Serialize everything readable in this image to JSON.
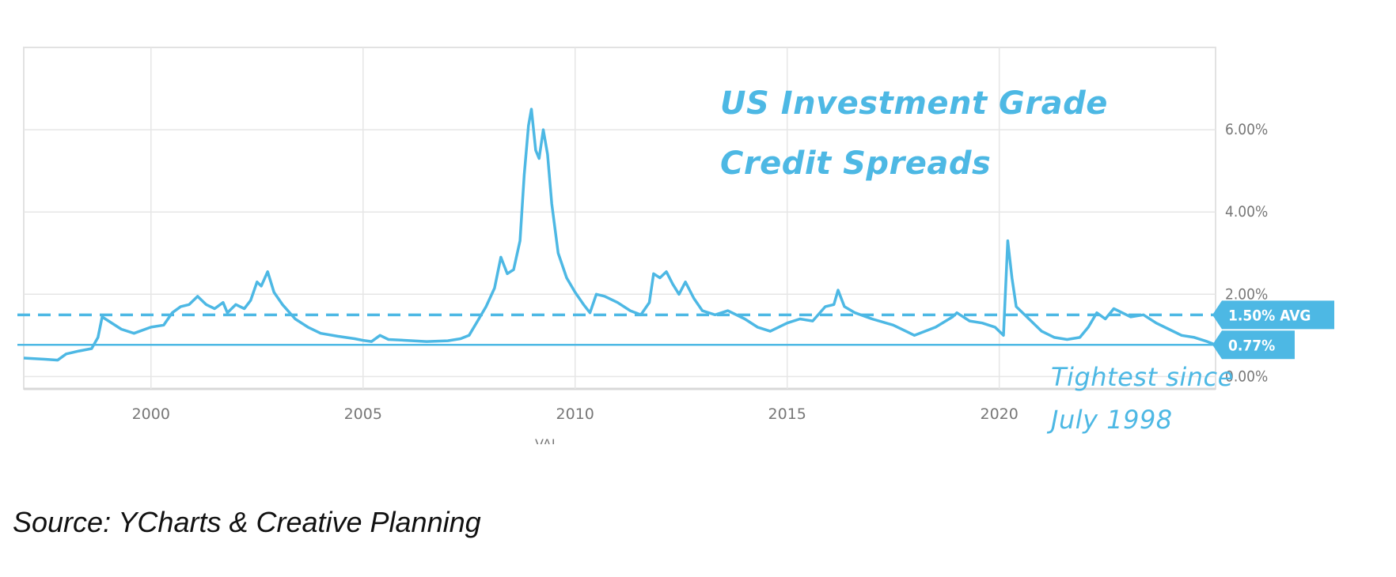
{
  "annotations": {
    "title_line1": "US Investment Grade",
    "title_line2": "Credit Spreads",
    "tightest_line1": "Tightest since",
    "tightest_line2": "July 1998",
    "xaxis_stub": "VAL"
  },
  "source": "Source:  YCharts & Creative Planning",
  "colors": {
    "line": "#4db8e4",
    "grid": "#e6e6e6",
    "badge": "#4db8e4",
    "axis_text": "#777777"
  },
  "chart_data": {
    "type": "line",
    "xlim": [
      1997.0,
      2025.1
    ],
    "ylim": [
      -0.3,
      8.0
    ],
    "x_ticks": [
      2000,
      2005,
      2010,
      2015,
      2020
    ],
    "x_tick_labels": [
      "2000",
      "2005",
      "2010",
      "2015",
      "2020"
    ],
    "y_ticks": [
      0,
      2,
      4,
      6
    ],
    "y_tick_labels": [
      "0.00%",
      "2.00%",
      "4.00%",
      "6.00%"
    ],
    "grid": true,
    "reference_lines": [
      {
        "value": 1.5,
        "style": "dashed",
        "label": "1.50% AVG"
      },
      {
        "value": 0.77,
        "style": "solid",
        "label": "0.77%"
      }
    ],
    "series": [
      {
        "points": [
          [
            1997.0,
            0.45
          ],
          [
            1997.5,
            0.42
          ],
          [
            1997.8,
            0.4
          ],
          [
            1998.0,
            0.55
          ],
          [
            1998.3,
            0.62
          ],
          [
            1998.6,
            0.68
          ],
          [
            1998.75,
            0.95
          ],
          [
            1998.85,
            1.45
          ],
          [
            1999.0,
            1.35
          ],
          [
            1999.3,
            1.15
          ],
          [
            1999.6,
            1.05
          ],
          [
            2000.0,
            1.2
          ],
          [
            2000.3,
            1.25
          ],
          [
            2000.5,
            1.55
          ],
          [
            2000.7,
            1.7
          ],
          [
            2000.9,
            1.75
          ],
          [
            2001.1,
            1.95
          ],
          [
            2001.3,
            1.75
          ],
          [
            2001.5,
            1.65
          ],
          [
            2001.7,
            1.8
          ],
          [
            2001.8,
            1.55
          ],
          [
            2002.0,
            1.75
          ],
          [
            2002.2,
            1.65
          ],
          [
            2002.35,
            1.85
          ],
          [
            2002.5,
            2.3
          ],
          [
            2002.6,
            2.2
          ],
          [
            2002.75,
            2.55
          ],
          [
            2002.9,
            2.05
          ],
          [
            2003.1,
            1.75
          ],
          [
            2003.4,
            1.4
          ],
          [
            2003.7,
            1.2
          ],
          [
            2004.0,
            1.05
          ],
          [
            2004.4,
            0.98
          ],
          [
            2004.8,
            0.92
          ],
          [
            2005.0,
            0.88
          ],
          [
            2005.2,
            0.85
          ],
          [
            2005.4,
            1.0
          ],
          [
            2005.6,
            0.9
          ],
          [
            2006.0,
            0.88
          ],
          [
            2006.5,
            0.85
          ],
          [
            2007.0,
            0.87
          ],
          [
            2007.3,
            0.92
          ],
          [
            2007.5,
            1.0
          ],
          [
            2007.7,
            1.35
          ],
          [
            2007.9,
            1.7
          ],
          [
            2008.1,
            2.15
          ],
          [
            2008.25,
            2.9
          ],
          [
            2008.4,
            2.5
          ],
          [
            2008.55,
            2.6
          ],
          [
            2008.7,
            3.3
          ],
          [
            2008.8,
            4.9
          ],
          [
            2008.9,
            6.1
          ],
          [
            2008.97,
            6.5
          ],
          [
            2009.07,
            5.5
          ],
          [
            2009.15,
            5.3
          ],
          [
            2009.25,
            6.0
          ],
          [
            2009.35,
            5.4
          ],
          [
            2009.45,
            4.2
          ],
          [
            2009.6,
            3.0
          ],
          [
            2009.8,
            2.4
          ],
          [
            2010.0,
            2.05
          ],
          [
            2010.2,
            1.75
          ],
          [
            2010.35,
            1.55
          ],
          [
            2010.5,
            2.0
          ],
          [
            2010.7,
            1.95
          ],
          [
            2011.0,
            1.8
          ],
          [
            2011.3,
            1.6
          ],
          [
            2011.55,
            1.5
          ],
          [
            2011.75,
            1.8
          ],
          [
            2011.85,
            2.5
          ],
          [
            2012.0,
            2.4
          ],
          [
            2012.15,
            2.55
          ],
          [
            2012.3,
            2.25
          ],
          [
            2012.45,
            2.0
          ],
          [
            2012.6,
            2.3
          ],
          [
            2012.8,
            1.9
          ],
          [
            2013.0,
            1.6
          ],
          [
            2013.3,
            1.5
          ],
          [
            2013.6,
            1.6
          ],
          [
            2014.0,
            1.4
          ],
          [
            2014.3,
            1.2
          ],
          [
            2014.6,
            1.1
          ],
          [
            2015.0,
            1.3
          ],
          [
            2015.3,
            1.4
          ],
          [
            2015.6,
            1.35
          ],
          [
            2015.9,
            1.7
          ],
          [
            2016.1,
            1.75
          ],
          [
            2016.2,
            2.1
          ],
          [
            2016.35,
            1.7
          ],
          [
            2016.6,
            1.55
          ],
          [
            2017.0,
            1.4
          ],
          [
            2017.5,
            1.25
          ],
          [
            2018.0,
            1.0
          ],
          [
            2018.5,
            1.2
          ],
          [
            2018.9,
            1.45
          ],
          [
            2019.0,
            1.55
          ],
          [
            2019.3,
            1.35
          ],
          [
            2019.6,
            1.3
          ],
          [
            2019.9,
            1.2
          ],
          [
            2020.1,
            1.0
          ],
          [
            2020.2,
            3.3
          ],
          [
            2020.3,
            2.4
          ],
          [
            2020.4,
            1.7
          ],
          [
            2020.7,
            1.4
          ],
          [
            2021.0,
            1.1
          ],
          [
            2021.3,
            0.95
          ],
          [
            2021.6,
            0.9
          ],
          [
            2021.9,
            0.95
          ],
          [
            2022.1,
            1.2
          ],
          [
            2022.3,
            1.55
          ],
          [
            2022.5,
            1.4
          ],
          [
            2022.7,
            1.65
          ],
          [
            2022.9,
            1.55
          ],
          [
            2023.1,
            1.45
          ],
          [
            2023.4,
            1.5
          ],
          [
            2023.7,
            1.3
          ],
          [
            2024.0,
            1.15
          ],
          [
            2024.3,
            1.0
          ],
          [
            2024.6,
            0.95
          ],
          [
            2024.9,
            0.85
          ],
          [
            2025.1,
            0.77
          ]
        ]
      }
    ]
  }
}
